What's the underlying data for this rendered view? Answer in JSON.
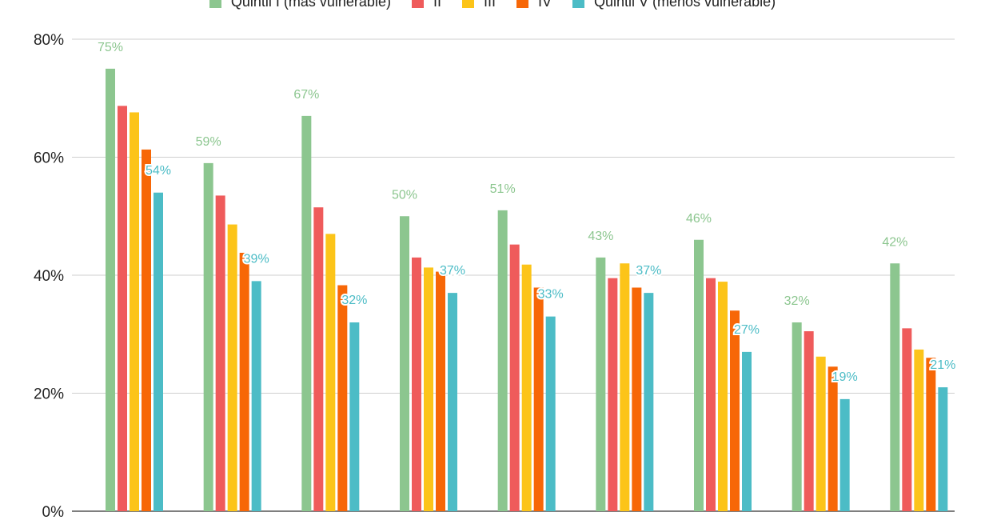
{
  "chart_data": {
    "type": "bar",
    "title": "",
    "xlabel": "",
    "ylabel": "",
    "ylim": [
      0,
      80
    ],
    "yticks": [
      "0%",
      "20%",
      "40%",
      "60%",
      "80%"
    ],
    "grid": true,
    "legend_position": "top",
    "categories": [
      "",
      "",
      "",
      "",
      "",
      "",
      "",
      "",
      ""
    ],
    "series": [
      {
        "name": "Quintil I (más vulnerable)",
        "color": "#8cc68f",
        "values": [
          75,
          59,
          67,
          50,
          51,
          43,
          46,
          32,
          42
        ]
      },
      {
        "name": "II",
        "color": "#ef5b5b",
        "values": [
          68.7,
          53.5,
          51.5,
          43,
          45.2,
          39.5,
          39.5,
          30.5,
          31
        ]
      },
      {
        "name": "III",
        "color": "#fcc419",
        "values": [
          67.6,
          48.6,
          47,
          41.3,
          41.8,
          42,
          38.9,
          26.2,
          27.4
        ]
      },
      {
        "name": "IV",
        "color": "#f76707",
        "values": [
          61.3,
          43.8,
          38.3,
          40.6,
          37.9,
          37.9,
          34,
          24.5,
          26
        ]
      },
      {
        "name": "Quintil V (menos vulnerable)",
        "color": "#4cbcc6",
        "values": [
          54,
          39,
          32,
          37,
          33,
          37,
          27,
          19,
          21
        ]
      }
    ],
    "data_labels": {
      "first": [
        "75%",
        "59%",
        "67%",
        "50%",
        "51%",
        "43%",
        "46%",
        "32%",
        "42%"
      ],
      "last": [
        "54%",
        "39%",
        "32%",
        "37%",
        "33%",
        "37%",
        "27%",
        "19%",
        "21%"
      ]
    }
  }
}
